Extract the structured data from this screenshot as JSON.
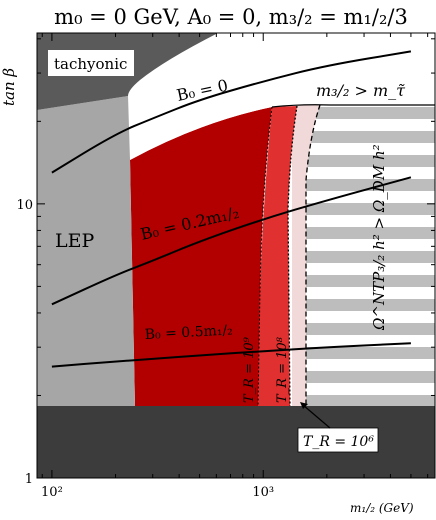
{
  "chart_data": {
    "type": "area",
    "title": "m₀ = 0 GeV, A₀ = 0, m₃/₂ = m₁/₂/3",
    "xlabel": "m₁/₂ (GeV)",
    "ylabel": "tan β",
    "xscale": "log",
    "yscale": "log",
    "xlim": [
      85,
      6500
    ],
    "ylim": [
      1,
      42
    ],
    "x_ticks": [
      {
        "value": 100,
        "label": "10²"
      },
      {
        "value": 1000,
        "label": "10³"
      }
    ],
    "y_ticks": [
      {
        "value": 1,
        "label": "1"
      },
      {
        "value": 10,
        "label": "10"
      }
    ],
    "regions": [
      {
        "name": "tachyonic",
        "label": "tachyonic",
        "color": "#5a5a5a",
        "boundary": [
          [
            85,
            25
          ],
          [
            140,
            25
          ],
          [
            175,
            33
          ],
          [
            230,
            42
          ]
        ]
      },
      {
        "name": "LEP",
        "label": "LEP",
        "color": "#a6a6a6",
        "boundary": [
          [
            85,
            25
          ],
          [
            140,
            25
          ],
          [
            145,
            1.75
          ],
          [
            85,
            1.75
          ]
        ]
      },
      {
        "name": "bottom-excluded",
        "label": "",
        "color": "#3c3c3c",
        "boundary": [
          [
            85,
            1.75
          ],
          [
            6500,
            1.75
          ],
          [
            6500,
            1
          ],
          [
            85,
            1
          ]
        ]
      },
      {
        "name": "m32-gt-mstau",
        "label": "m₃/₂ > m_τ̃",
        "color": "#ffffff",
        "boundary": [
          [
            140,
            25
          ],
          [
            6500,
            24
          ]
        ]
      },
      {
        "name": "TR-1e9",
        "label": "T_R = 10⁹",
        "color": "#b20000",
        "boundary_x": 900
      },
      {
        "name": "TR-1e8",
        "label": "T_R = 10⁸",
        "color": "#e03030",
        "boundary_x": 1250
      },
      {
        "name": "TR-1e6",
        "label": "T_R = 10⁶",
        "color": "#f2d9d9",
        "boundary_x": 1500
      },
      {
        "name": "overclosure",
        "label": "Ω^NTP₃/₂ h² > Ω_DM h²",
        "color": "#bdbdbd"
      }
    ],
    "series": [
      {
        "name": "B₀ = 0",
        "x": [
          100,
          200,
          300,
          500,
          1000,
          2000,
          5000
        ],
        "y": [
          13.0,
          18.0,
          20.5,
          24.0,
          28.0,
          32.0,
          36.0
        ]
      },
      {
        "name": "B₀ = 0.2m₁/₂",
        "x": [
          100,
          200,
          300,
          500,
          1000,
          2000,
          5000
        ],
        "y": [
          4.3,
          5.5,
          6.2,
          7.3,
          8.8,
          10.3,
          12.5
        ]
      },
      {
        "name": "B₀ = 0.5m₁/₂",
        "x": [
          100,
          200,
          300,
          500,
          1000,
          2000,
          5000
        ],
        "y": [
          2.55,
          2.66,
          2.72,
          2.8,
          2.9,
          3.0,
          3.1
        ]
      }
    ],
    "region_labels": {
      "tachyonic": "tachyonic",
      "lep": "LEP",
      "mstau": "m₃/₂ > m_τ̃",
      "omega": "Ω^NTP₃/₂ h² > Ω_DM h²",
      "tr9": "T_R = 10⁹",
      "tr8": "T_R = 10⁸",
      "tr6": "T_R = 10⁶"
    },
    "grid": false,
    "legend": "none"
  }
}
